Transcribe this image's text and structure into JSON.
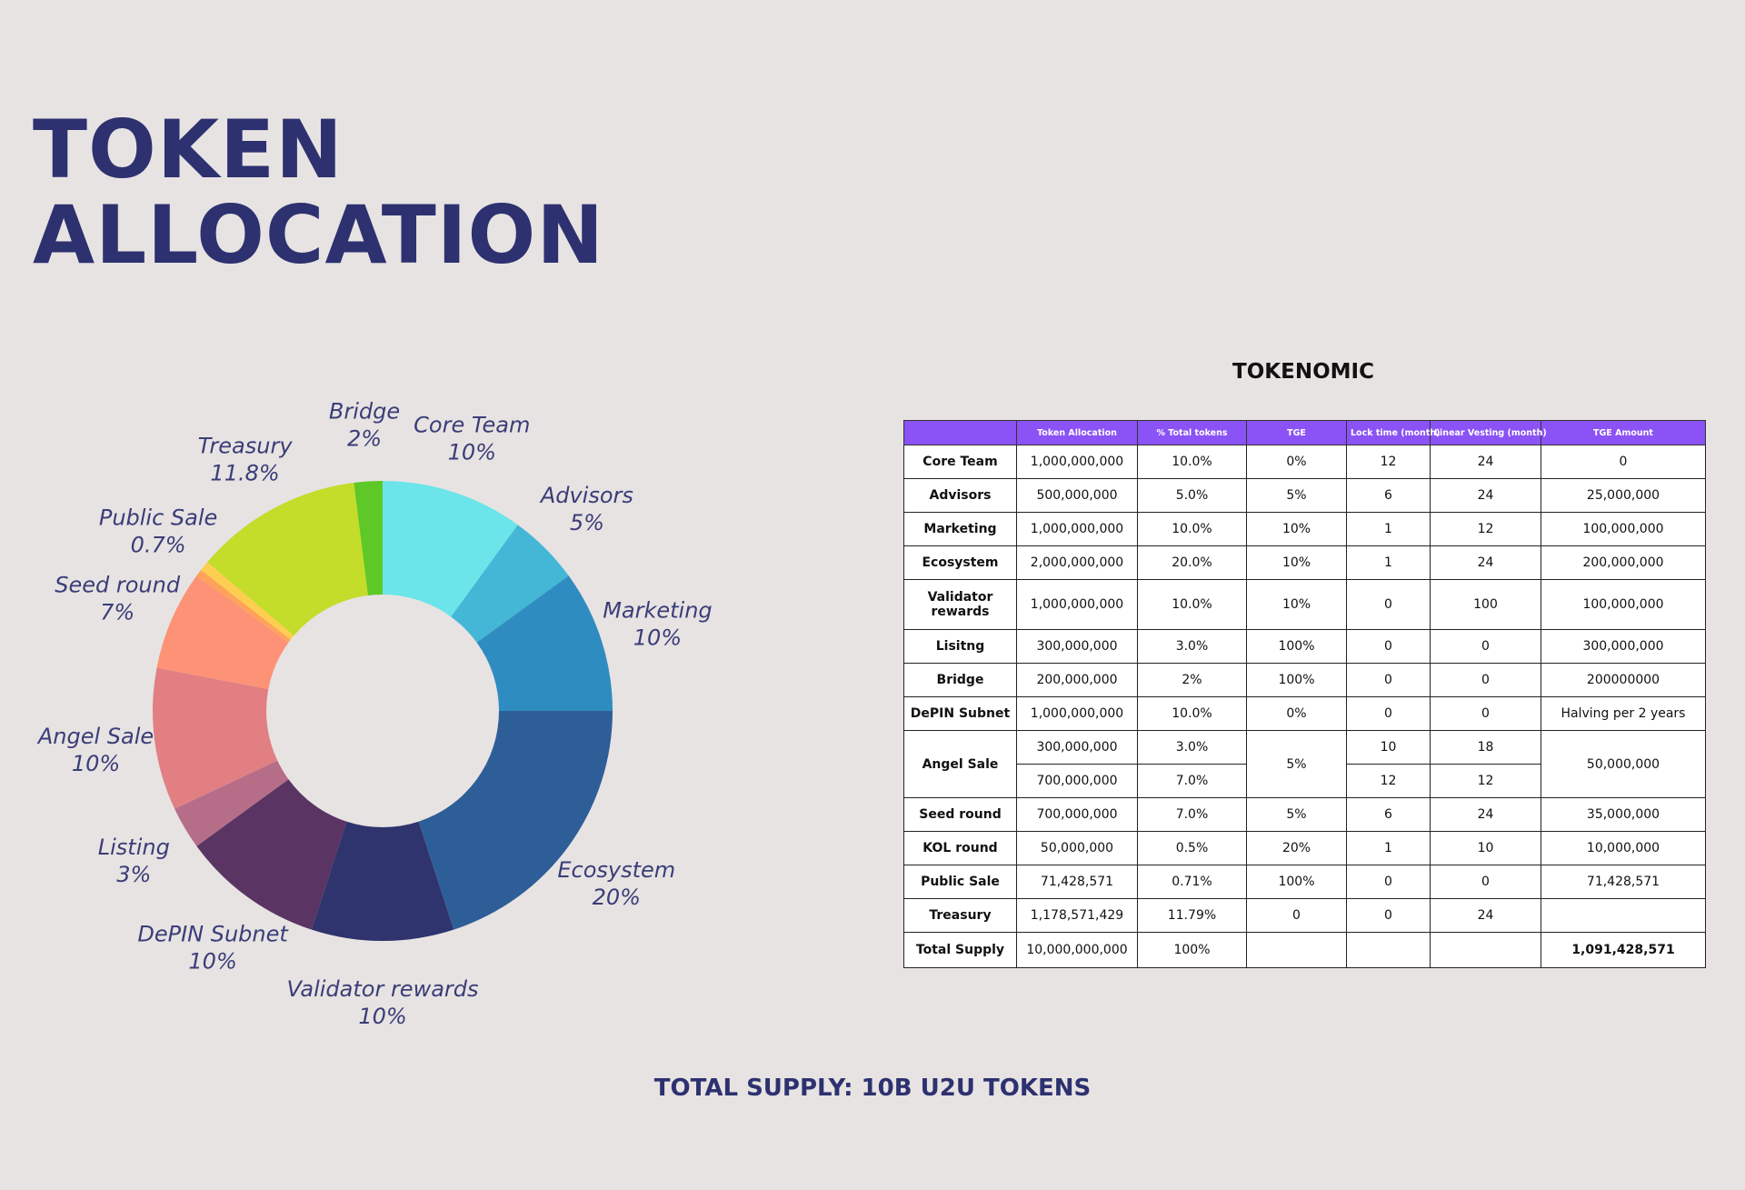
{
  "page": {
    "title_line1": "TOKEN",
    "title_line2": "ALLOCATION",
    "footer": "TOTAL SUPPLY: 10B U2U TOKENS"
  },
  "chart_data": {
    "type": "pie",
    "title": "",
    "donut": true,
    "slices": [
      {
        "label": "Core Team",
        "pct_label": "10%",
        "value": 10,
        "color": "#6be5ea"
      },
      {
        "label": "Advisors",
        "pct_label": "5%",
        "value": 5,
        "color": "#44b7d7"
      },
      {
        "label": "Marketing",
        "pct_label": "10%",
        "value": 10,
        "color": "#2f8cc0"
      },
      {
        "label": "Ecosystem",
        "pct_label": "20%",
        "value": 20,
        "color": "#2e5e98"
      },
      {
        "label": "Validator rewards",
        "pct_label": "10%",
        "value": 10,
        "color": "#2f336e"
      },
      {
        "label": "DePIN Subnet",
        "pct_label": "10%",
        "value": 10,
        "color": "#5a3563"
      },
      {
        "label": "Listing",
        "pct_label": "3%",
        "value": 3,
        "color": "#b66e88"
      },
      {
        "label": "Angel Sale",
        "pct_label": "10%",
        "value": 10,
        "color": "#e17f82"
      },
      {
        "label": "Seed round",
        "pct_label": "7%",
        "value": 7,
        "color": "#fd9276"
      },
      {
        "label": "",
        "pct_label": "",
        "value": 0.5,
        "color": "#ffa35a"
      },
      {
        "label": "Public Sale",
        "pct_label": "0.7%",
        "value": 0.7,
        "color": "#fdce4f"
      },
      {
        "label": "Treasury",
        "pct_label": "11.8%",
        "value": 11.8,
        "color": "#c4dc2a"
      },
      {
        "label": "Bridge",
        "pct_label": "2%",
        "value": 2,
        "color": "#5ec826"
      }
    ]
  },
  "table": {
    "title": "TOKENOMIC",
    "headers": [
      "",
      "Token Allocation",
      "% Total tokens",
      "TGE",
      "Lock time (month)",
      "Linear Vesting (month)",
      "TGE Amount"
    ],
    "rows": {
      "core_team": [
        "Core Team",
        "1,000,000,000",
        "10.0%",
        "0%",
        "12",
        "24",
        "0"
      ],
      "advisors": [
        "Advisors",
        "500,000,000",
        "5.0%",
        "5%",
        "6",
        "24",
        "25,000,000"
      ],
      "marketing": [
        "Marketing",
        "1,000,000,000",
        "10.0%",
        "10%",
        "1",
        "12",
        "100,000,000"
      ],
      "ecosystem": [
        "Ecosystem",
        "2,000,000,000",
        "20.0%",
        "10%",
        "1",
        "24",
        "200,000,000"
      ],
      "validator": [
        "Validator rewards",
        "1,000,000,000",
        "10.0%",
        "10%",
        "0",
        "100",
        "100,000,000"
      ],
      "listing": [
        "Lisitng",
        "300,000,000",
        "3.0%",
        "100%",
        "0",
        "0",
        "300,000,000"
      ],
      "bridge": [
        "Bridge",
        "200,000,000",
        "2%",
        "100%",
        "0",
        "0",
        "200000000"
      ],
      "depin": [
        "DePIN Subnet",
        "1,000,000,000",
        "10.0%",
        "0%",
        "0",
        "0",
        "Halving per 2 years"
      ],
      "angel_a": [
        "Angel Sale",
        "300,000,000",
        "3.0%",
        "5%",
        "10",
        "18",
        "50,000,000"
      ],
      "angel_b": [
        "",
        "700,000,000",
        "7.0%",
        "",
        "12",
        "12",
        ""
      ],
      "seed": [
        "Seed round",
        "700,000,000",
        "7.0%",
        "5%",
        "6",
        "24",
        "35,000,000"
      ],
      "kol": [
        "KOL round",
        "50,000,000",
        "0.5%",
        "20%",
        "1",
        "10",
        "10,000,000"
      ],
      "public": [
        "Public Sale",
        "71,428,571",
        "0.71%",
        "100%",
        "0",
        "0",
        "71,428,571"
      ],
      "treasury": [
        "Treasury",
        "1,178,571,429",
        "11.79%",
        "0",
        "0",
        "24",
        ""
      ],
      "total": [
        "Total Supply",
        "10,000,000,000",
        "100%",
        "",
        "",
        "",
        "1,091,428,571"
      ]
    }
  }
}
